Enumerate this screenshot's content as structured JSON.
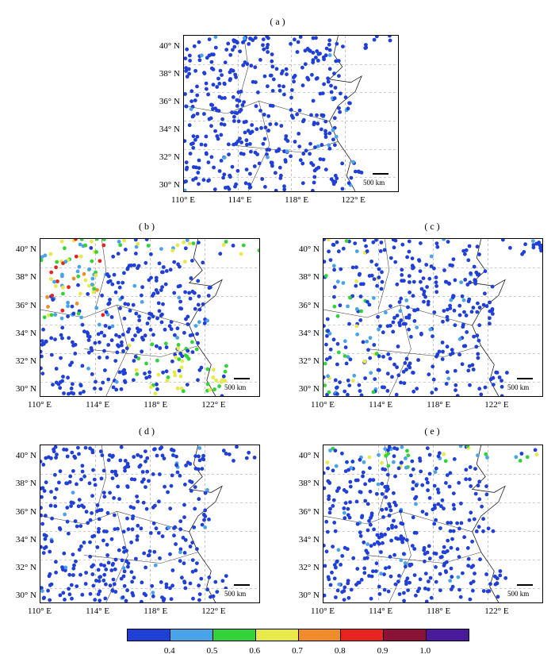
{
  "panels": [
    {
      "id": "a",
      "label": "( a )",
      "seed": 11,
      "hot": []
    },
    {
      "id": "b",
      "label": "( b )",
      "seed": 23,
      "hot": [
        "west",
        "south",
        "north"
      ]
    },
    {
      "id": "c",
      "label": "( c )",
      "seed": 37,
      "hot": [
        "west-light"
      ]
    },
    {
      "id": "d",
      "label": "( d )",
      "seed": 41,
      "hot": []
    },
    {
      "id": "e",
      "label": "( e )",
      "seed": 53,
      "hot": [
        "north"
      ]
    }
  ],
  "y_ticks": [
    "40° N",
    "38° N",
    "36° N",
    "34° N",
    "32° N",
    "30° N"
  ],
  "x_ticks": [
    "110° E",
    "114° E",
    "118° E",
    "122° E"
  ],
  "scale_bar": "500 km",
  "colorbar": {
    "colors": [
      "#1f3fd6",
      "#4aa3e8",
      "#34d23a",
      "#e7e84a",
      "#f08c2a",
      "#e8231f",
      "#8a1238",
      "#4b1a9b"
    ],
    "labels": [
      "0.4",
      "0.5",
      "0.6",
      "0.7",
      "0.8",
      "0.9",
      "1.0"
    ]
  }
}
